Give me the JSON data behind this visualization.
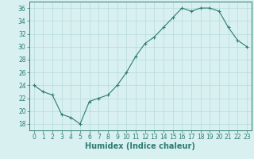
{
  "x": [
    0,
    1,
    2,
    3,
    4,
    5,
    6,
    7,
    8,
    9,
    10,
    11,
    12,
    13,
    14,
    15,
    16,
    17,
    18,
    19,
    20,
    21,
    22,
    23
  ],
  "y": [
    24,
    23,
    22.5,
    19.5,
    19,
    18,
    21.5,
    22,
    22.5,
    24,
    26,
    28.5,
    30.5,
    31.5,
    33,
    34.5,
    36,
    35.5,
    36,
    36,
    35.5,
    33,
    31,
    30
  ],
  "line_color": "#2d7b6f",
  "bg_color": "#d8f0f0",
  "grid_color": "#b8dada",
  "xlabel": "Humidex (Indice chaleur)",
  "xlim": [
    -0.5,
    23.5
  ],
  "ylim": [
    17,
    37
  ],
  "yticks": [
    18,
    20,
    22,
    24,
    26,
    28,
    30,
    32,
    34,
    36
  ],
  "xticks": [
    0,
    1,
    2,
    3,
    4,
    5,
    6,
    7,
    8,
    9,
    10,
    11,
    12,
    13,
    14,
    15,
    16,
    17,
    18,
    19,
    20,
    21,
    22,
    23
  ],
  "tick_font_size": 5.5,
  "label_font_size": 7
}
